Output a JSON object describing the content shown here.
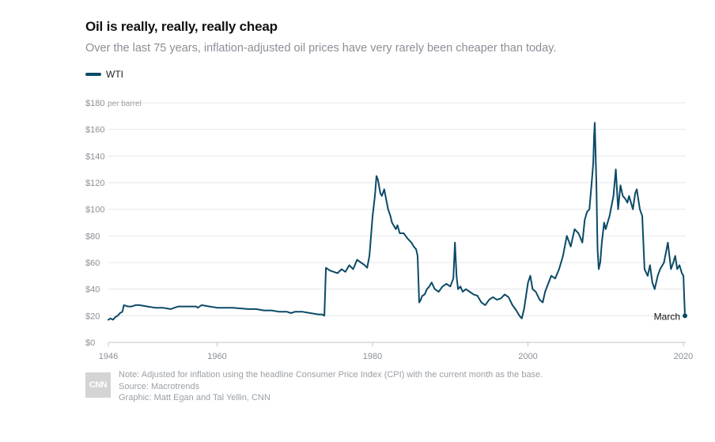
{
  "header": {
    "title": "Oil is really, really, really cheap",
    "subtitle": "Over the last 75 years, inflation-adjusted oil prices have very rarely been cheaper than today."
  },
  "legend": {
    "label": "WTI",
    "color": "#0b4a67"
  },
  "footer": {
    "logo": "CNN",
    "note": "Note: Adjusted for inflation using the headline Consumer Price Index (CPI) with the current month as the base.",
    "source": "Source: Macrotrends",
    "credit": "Graphic: Matt Egan and Tal Yellin, CNN"
  },
  "chart_data": {
    "type": "line",
    "title": "Oil is really, really, really cheap",
    "ylabel": "per barrel",
    "xlim": [
      1946,
      2020.3
    ],
    "ylim": [
      0,
      180
    ],
    "y_ticks": [
      0,
      20,
      40,
      60,
      80,
      100,
      120,
      140,
      160,
      180
    ],
    "y_tick_labels": [
      "$0",
      "$20",
      "$40",
      "$60",
      "$80",
      "$100",
      "$120",
      "$140",
      "$160",
      "$180"
    ],
    "y_unit_label": "per barrel",
    "x_ticks": [
      1946,
      1960,
      1980,
      2000,
      2020
    ],
    "x_tick_labels": [
      "1946",
      "1960",
      "1980",
      "2000",
      "2020"
    ],
    "annotation": {
      "label": "March",
      "x": 2020.2,
      "y": 20
    },
    "series": [
      {
        "name": "WTI",
        "x": [
          1946.0,
          1946.3,
          1946.6,
          1946.9,
          1947.2,
          1947.5,
          1947.8,
          1948.0,
          1948.5,
          1949.0,
          1949.5,
          1950.0,
          1951.0,
          1952.0,
          1953.0,
          1954.0,
          1955.0,
          1956.0,
          1957.0,
          1957.3,
          1957.5,
          1958.0,
          1959.0,
          1960.0,
          1962.0,
          1964.0,
          1965.0,
          1966.0,
          1967.0,
          1968.0,
          1969.0,
          1969.5,
          1970.0,
          1971.0,
          1972.0,
          1973.0,
          1973.5,
          1973.8,
          1974.0,
          1974.5,
          1975.0,
          1975.5,
          1976.0,
          1976.5,
          1977.0,
          1977.5,
          1978.0,
          1978.5,
          1979.0,
          1979.3,
          1979.6,
          1980.0,
          1980.3,
          1980.5,
          1980.7,
          1981.0,
          1981.2,
          1981.5,
          1982.0,
          1982.3,
          1982.5,
          1983.0,
          1983.2,
          1983.5,
          1984.0,
          1984.5,
          1985.0,
          1985.3,
          1985.6,
          1985.8,
          1986.0,
          1986.2,
          1986.4,
          1986.7,
          1987.0,
          1987.3,
          1987.6,
          1988.0,
          1988.5,
          1989.0,
          1989.5,
          1990.0,
          1990.4,
          1990.6,
          1990.8,
          1991.0,
          1991.3,
          1991.6,
          1992.0,
          1992.5,
          1993.0,
          1993.5,
          1994.0,
          1994.5,
          1995.0,
          1995.5,
          1996.0,
          1996.5,
          1997.0,
          1997.5,
          1998.0,
          1998.5,
          1998.9,
          1999.2,
          1999.5,
          2000.0,
          2000.3,
          2000.6,
          2001.0,
          2001.5,
          2001.9,
          2002.2,
          2002.6,
          2003.0,
          2003.5,
          2004.0,
          2004.5,
          2005.0,
          2005.5,
          2006.0,
          2006.5,
          2007.0,
          2007.3,
          2007.6,
          2007.9,
          2008.2,
          2008.4,
          2008.5,
          2008.6,
          2008.8,
          2008.95,
          2009.1,
          2009.3,
          2009.5,
          2009.8,
          2010.0,
          2010.5,
          2011.0,
          2011.3,
          2011.6,
          2011.9,
          2012.2,
          2012.5,
          2012.8,
          2013.0,
          2013.5,
          2013.8,
          2014.0,
          2014.4,
          2014.7,
          2015.0,
          2015.4,
          2015.7,
          2016.0,
          2016.3,
          2016.7,
          2017.0,
          2017.5,
          2018.0,
          2018.4,
          2018.7,
          2018.95,
          2019.2,
          2019.5,
          2019.8,
          2020.0,
          2020.1,
          2020.2
        ],
        "values": [
          17,
          18,
          17,
          19,
          20,
          22,
          23,
          28,
          27,
          27,
          28,
          28,
          27,
          26,
          26,
          25,
          27,
          27,
          27,
          27,
          26,
          28,
          27,
          26,
          26,
          25,
          25,
          24,
          24,
          23,
          23,
          22,
          23,
          23,
          22,
          21,
          21,
          20,
          56,
          54,
          53,
          52,
          55,
          53,
          58,
          55,
          62,
          60,
          58,
          56,
          65,
          95,
          110,
          125,
          122,
          112,
          110,
          115,
          100,
          95,
          90,
          85,
          88,
          82,
          82,
          78,
          75,
          72,
          70,
          65,
          30,
          32,
          35,
          36,
          40,
          42,
          45,
          40,
          38,
          42,
          44,
          42,
          48,
          75,
          50,
          40,
          42,
          38,
          40,
          38,
          36,
          35,
          30,
          28,
          32,
          34,
          32,
          33,
          36,
          34,
          28,
          24,
          20,
          18,
          25,
          45,
          50,
          40,
          38,
          32,
          30,
          38,
          44,
          50,
          48,
          55,
          65,
          80,
          72,
          85,
          82,
          75,
          92,
          98,
          100,
          120,
          135,
          155,
          165,
          120,
          70,
          55,
          60,
          75,
          90,
          85,
          95,
          110,
          130,
          100,
          118,
          110,
          108,
          105,
          110,
          100,
          112,
          115,
          100,
          95,
          55,
          50,
          58,
          45,
          40,
          50,
          55,
          60,
          75,
          55,
          60,
          65,
          55,
          58,
          52,
          50,
          35,
          20
        ]
      }
    ]
  }
}
